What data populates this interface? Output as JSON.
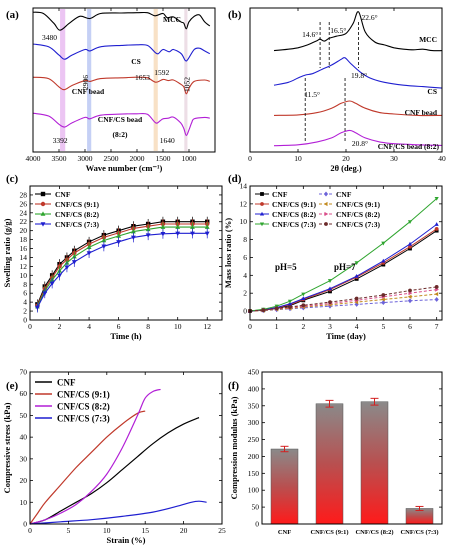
{
  "chart_data": [
    {
      "panel": "(a)",
      "type": "line",
      "xlabel": "Wave number (cm⁻¹)",
      "xlim": [
        4000,
        500
      ],
      "xticks": [
        4000,
        3500,
        3000,
        2500,
        2000,
        1500,
        1000
      ],
      "series": [
        {
          "name": "MCC",
          "color": "#000000",
          "offset": 4.1,
          "x": [
            4000,
            3800,
            3600,
            3480,
            3300,
            3100,
            2906,
            2700,
            2300,
            2000,
            1800,
            1653,
            1500,
            1420,
            1300,
            1160,
            1100,
            1052,
            1000,
            900,
            800,
            700,
            600
          ],
          "y": [
            0.95,
            0.9,
            0.55,
            0.3,
            0.55,
            0.8,
            0.72,
            0.9,
            0.92,
            0.93,
            0.93,
            0.82,
            0.9,
            0.75,
            0.78,
            0.6,
            0.55,
            0.35,
            0.6,
            0.8,
            0.85,
            0.6,
            0.45
          ]
        },
        {
          "name": "CS",
          "color": "#1f1fd0",
          "offset": 3.0,
          "x": [
            4000,
            3700,
            3500,
            3392,
            3250,
            3000,
            2906,
            2700,
            2300,
            2000,
            1800,
            1653,
            1592,
            1500,
            1380,
            1300,
            1150,
            1070,
            1020,
            900,
            800,
            700,
            600
          ],
          "y": [
            0.9,
            0.8,
            0.5,
            0.35,
            0.5,
            0.7,
            0.65,
            0.8,
            0.85,
            0.87,
            0.85,
            0.6,
            0.55,
            0.7,
            0.62,
            0.7,
            0.55,
            0.3,
            0.35,
            0.7,
            0.75,
            0.65,
            0.55
          ]
        },
        {
          "name": "CNF bead",
          "color": "#c0392b",
          "offset": 1.8,
          "x": [
            4000,
            3700,
            3500,
            3400,
            3250,
            3000,
            2900,
            2700,
            2300,
            2000,
            1800,
            1640,
            1500,
            1400,
            1300,
            1160,
            1100,
            1052,
            1000,
            900,
            700,
            600
          ],
          "y": [
            0.9,
            0.85,
            0.55,
            0.45,
            0.6,
            0.78,
            0.75,
            0.85,
            0.88,
            0.9,
            0.88,
            0.72,
            0.82,
            0.78,
            0.8,
            0.65,
            0.55,
            0.3,
            0.5,
            0.75,
            0.8,
            0.75
          ]
        },
        {
          "name": "CNF/CS bead (8:2)",
          "color": "#b21fd6",
          "offset": 0.5,
          "x": [
            4000,
            3700,
            3500,
            3392,
            3250,
            3000,
            2906,
            2700,
            2300,
            2000,
            1800,
            1640,
            1560,
            1500,
            1400,
            1300,
            1160,
            1100,
            1052,
            1000,
            950,
            900,
            700,
            600
          ],
          "y": [
            0.9,
            0.8,
            0.5,
            0.4,
            0.55,
            0.75,
            0.7,
            0.83,
            0.87,
            0.88,
            0.86,
            0.55,
            0.62,
            0.7,
            0.72,
            0.76,
            0.55,
            0.35,
            0.1,
            0.3,
            0.55,
            0.7,
            0.75,
            0.72
          ]
        }
      ],
      "annotations": [
        "3480",
        "2906",
        "1653",
        "1592",
        "1052",
        "3392",
        "1640"
      ],
      "bands": [
        {
          "from": 3480,
          "to": 3380,
          "color": "#e7b7f0"
        },
        {
          "from": 2960,
          "to": 2880,
          "color": "#b7c4f2"
        },
        {
          "from": 1680,
          "to": 1600,
          "color": "#f6d9b8"
        },
        {
          "from": 1090,
          "to": 1030,
          "color": "#e8d6e0"
        }
      ]
    },
    {
      "panel": "(b)",
      "type": "line",
      "xlabel": "2θ (deg.)",
      "xlim": [
        0,
        40
      ],
      "xticks": [
        0,
        10,
        20,
        30,
        40
      ],
      "series": [
        {
          "name": "MCC",
          "color": "#000000",
          "offset": 3.0,
          "x": [
            5,
            8,
            10,
            12,
            14,
            14.6,
            15.5,
            16.5,
            18,
            20,
            21.5,
            22.6,
            24,
            26,
            28,
            30,
            32,
            34,
            36,
            38,
            40
          ],
          "y": [
            0.45,
            0.5,
            0.55,
            0.65,
            0.8,
            0.85,
            0.78,
            0.88,
            0.95,
            1.05,
            1.4,
            1.8,
            1.1,
            0.75,
            0.65,
            0.55,
            0.5,
            0.48,
            0.5,
            0.45,
            0.45
          ]
        },
        {
          "name": "CS",
          "color": "#1f1fd0",
          "offset": 2.0,
          "x": [
            5,
            8,
            10,
            11.5,
            13,
            15,
            17,
            19,
            19.8,
            21,
            23,
            25,
            28,
            32,
            36,
            40
          ],
          "y": [
            0.25,
            0.35,
            0.5,
            0.6,
            0.65,
            0.8,
            0.95,
            1.15,
            1.2,
            1.0,
            0.7,
            0.5,
            0.35,
            0.25,
            0.2,
            0.15
          ]
        },
        {
          "name": "CNF bead",
          "color": "#c0392b",
          "offset": 1.0,
          "x": [
            5,
            10,
            14,
            17,
            19,
            20.8,
            22,
            24,
            27,
            30,
            35,
            40
          ],
          "y": [
            0.2,
            0.22,
            0.3,
            0.45,
            0.62,
            0.7,
            0.62,
            0.45,
            0.3,
            0.25,
            0.2,
            0.2
          ]
        },
        {
          "name": "CNF/CS bead (8:2)",
          "color": "#b21fd6",
          "offset": 0.0,
          "x": [
            5,
            10,
            14,
            17,
            19,
            20.8,
            22,
            24,
            27,
            30,
            35,
            40
          ],
          "y": [
            0.15,
            0.18,
            0.28,
            0.42,
            0.6,
            0.68,
            0.6,
            0.42,
            0.28,
            0.22,
            0.18,
            0.16
          ]
        }
      ],
      "annotations": [
        "14.6°",
        "16.5°",
        "22.6°",
        "19.8°",
        "11.5°",
        "20.8°"
      ]
    },
    {
      "panel": "(c)",
      "type": "line",
      "xlabel": "Time (h)",
      "ylabel": "Swelling ratio (g/g)",
      "xlim": [
        0,
        13
      ],
      "ylim": [
        0,
        30
      ],
      "xticks": [
        0,
        2,
        4,
        6,
        8,
        10,
        12
      ],
      "yticks": [
        0,
        2,
        4,
        6,
        8,
        10,
        12,
        14,
        16,
        18,
        20,
        22,
        24,
        26,
        28
      ],
      "x": [
        0.5,
        1,
        1.5,
        2,
        2.5,
        3,
        4,
        5,
        6,
        7,
        8,
        9,
        10,
        11,
        12
      ],
      "series": [
        {
          "name": "CNF",
          "color": "#000000",
          "marker": "square",
          "values": [
            3.5,
            7.5,
            10,
            12.5,
            14,
            15.5,
            17.5,
            19,
            20,
            21,
            21.5,
            22,
            22,
            22,
            22
          ]
        },
        {
          "name": "CNF/CS (9:1)",
          "color": "#c0392b",
          "marker": "circle",
          "values": [
            3.2,
            7,
            9.5,
            12,
            13.5,
            15,
            17,
            18.5,
            19.5,
            20.5,
            21,
            21.5,
            21.5,
            21.5,
            21.5
          ]
        },
        {
          "name": "CNF/CS (8:2)",
          "color": "#2fa52f",
          "marker": "triangle",
          "values": [
            3,
            6.5,
            9,
            11,
            12.8,
            14.2,
            16.3,
            17.8,
            18.8,
            19.8,
            20.3,
            20.8,
            20.8,
            20.8,
            20.8
          ]
        },
        {
          "name": "CNF/CS (7:3)",
          "color": "#1f1fd0",
          "marker": "triangle-down",
          "values": [
            2.8,
            6,
            8.2,
            10,
            11.8,
            13,
            15,
            16.5,
            17.5,
            18.5,
            19,
            19.3,
            19.4,
            19.4,
            19.4
          ]
        }
      ]
    },
    {
      "panel": "(d)",
      "type": "line",
      "xlabel": "Time (day)",
      "ylabel": "Mass loss ratio (%)",
      "xlim": [
        0,
        7.2
      ],
      "ylim": [
        -1,
        14
      ],
      "xticks": [
        0,
        1,
        2,
        3,
        4,
        5,
        6,
        7
      ],
      "yticks": [
        0,
        2,
        4,
        6,
        8,
        10,
        12,
        14
      ],
      "annotations": [
        "pH=5",
        "pH=7"
      ],
      "x": [
        0,
        0.5,
        1,
        1.5,
        2,
        3,
        4,
        5,
        6,
        7
      ],
      "series": [
        {
          "name": "CNF",
          "group": "pH=5",
          "color": "#000000",
          "marker": "square",
          "dash": false,
          "values": [
            0,
            0.1,
            0.3,
            0.6,
            1.2,
            2.2,
            3.6,
            5.2,
            7.0,
            9.0
          ]
        },
        {
          "name": "CNF/CS (9:1)",
          "group": "pH=5",
          "color": "#c0392b",
          "marker": "circle",
          "dash": false,
          "values": [
            0,
            0.1,
            0.35,
            0.7,
            1.3,
            2.4,
            3.8,
            5.4,
            7.2,
            9.2
          ]
        },
        {
          "name": "CNF/CS (8:2)",
          "group": "pH=5",
          "color": "#1f1fd0",
          "marker": "triangle",
          "dash": false,
          "values": [
            0,
            0.15,
            0.4,
            0.8,
            1.4,
            2.5,
            3.9,
            5.6,
            7.5,
            9.7
          ]
        },
        {
          "name": "CNF/CS (7:3)",
          "group": "pH=5",
          "color": "#2fa52f",
          "marker": "triangle-down",
          "dash": false,
          "values": [
            0,
            0.2,
            0.55,
            1.1,
            1.9,
            3.4,
            5.4,
            7.6,
            10.0,
            12.6
          ]
        },
        {
          "name": "CNF",
          "group": "pH=7",
          "color": "#6c63d9",
          "marker": "diamond",
          "dash": true,
          "values": [
            0,
            0.05,
            0.15,
            0.25,
            0.35,
            0.55,
            0.75,
            0.95,
            1.15,
            1.3
          ]
        },
        {
          "name": "CNF/CS (9:1)",
          "group": "pH=7",
          "color": "#c28a1e",
          "marker": "triangle-left",
          "dash": true,
          "values": [
            0,
            0.05,
            0.2,
            0.3,
            0.45,
            0.7,
            1.0,
            1.3,
            1.6,
            1.9
          ]
        },
        {
          "name": "CNF/CS (8:2)",
          "group": "pH=7",
          "color": "#d94f8a",
          "marker": "triangle-right",
          "dash": true,
          "values": [
            0,
            0.1,
            0.25,
            0.4,
            0.55,
            0.85,
            1.2,
            1.6,
            2.0,
            2.4
          ]
        },
        {
          "name": "CNF/CS (7:3)",
          "group": "pH=7",
          "color": "#6b2a2a",
          "marker": "circle",
          "dash": true,
          "values": [
            0,
            0.1,
            0.3,
            0.45,
            0.65,
            1.0,
            1.4,
            1.8,
            2.3,
            2.7
          ]
        }
      ]
    },
    {
      "panel": "(e)",
      "type": "line",
      "xlabel": "Strain (%)",
      "ylabel": "Compressive stress (kPa)",
      "xlim": [
        0,
        25
      ],
      "ylim": [
        0,
        70
      ],
      "xticks": [
        0,
        5,
        10,
        15,
        20,
        25
      ],
      "yticks": [
        0,
        10,
        20,
        30,
        40,
        50,
        60,
        70
      ],
      "series": [
        {
          "name": "CNF",
          "color": "#000000",
          "x": [
            0,
            2,
            4,
            6,
            8,
            10,
            12,
            14,
            16,
            18,
            20,
            22
          ],
          "y": [
            0,
            2,
            6,
            10,
            14,
            19,
            25,
            31,
            37,
            42,
            46,
            49
          ]
        },
        {
          "name": "CNF/CS (9:1)",
          "color": "#c0392b",
          "x": [
            0,
            1,
            2,
            4,
            6,
            8,
            10,
            12,
            14,
            15
          ],
          "y": [
            0,
            5,
            10,
            18,
            26,
            33,
            40,
            46,
            51,
            52
          ]
        },
        {
          "name": "CNF/CS (8:2)",
          "color": "#b21fd6",
          "x": [
            0,
            2,
            4,
            6,
            8,
            10,
            12,
            14,
            15,
            16,
            17
          ],
          "y": [
            0,
            2,
            5,
            9,
            15,
            23,
            35,
            50,
            58,
            61,
            62
          ]
        },
        {
          "name": "CNF/CS (7:3)",
          "color": "#1f1fd0",
          "x": [
            0,
            4,
            8,
            12,
            16,
            19,
            21,
            22,
            23
          ],
          "y": [
            0,
            1,
            2,
            3.5,
            5.5,
            8,
            10,
            10.5,
            10
          ]
        }
      ]
    },
    {
      "panel": "(f)",
      "type": "bar",
      "ylabel": "Compression modulus (kPa)",
      "ylim": [
        0,
        450
      ],
      "yticks": [
        0,
        50,
        100,
        150,
        200,
        250,
        300,
        350,
        400,
        450
      ],
      "categories": [
        "CNF",
        "CNF/CS (9:1)",
        "CNF/CS (8:2)",
        "CNF/CS (7:3)"
      ],
      "values": [
        222,
        356,
        362,
        46
      ],
      "errors": [
        8,
        10,
        10,
        6
      ]
    }
  ]
}
